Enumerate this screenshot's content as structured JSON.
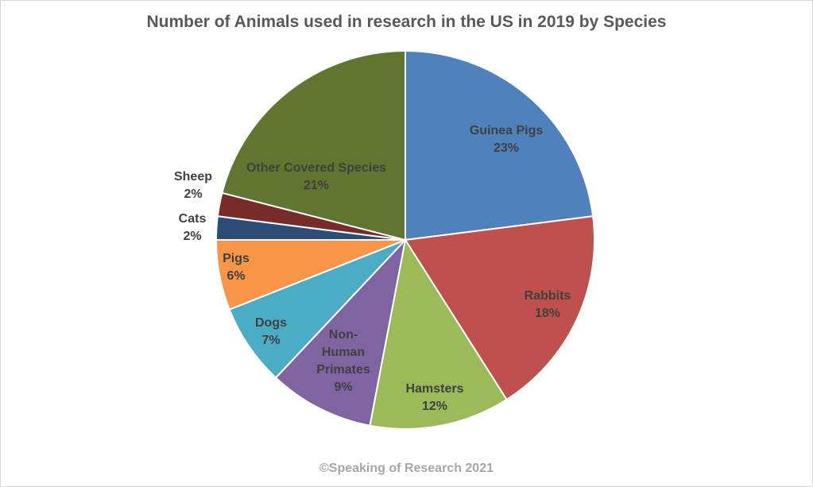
{
  "chart_data": {
    "type": "pie",
    "title": "Number of Animals used in research in the US in 2019 by Species",
    "slices": [
      {
        "label": "Guinea Pigs",
        "value": 23,
        "display": "23%",
        "color": "#4f81bd"
      },
      {
        "label": "Rabbits",
        "value": 18,
        "display": "18%",
        "color": "#c0504d"
      },
      {
        "label": "Hamsters",
        "value": 12,
        "display": "12%",
        "color": "#9bbb59"
      },
      {
        "label": "Non-Human Primates",
        "value": 9,
        "display": "9%",
        "color": "#8064a2"
      },
      {
        "label": "Dogs",
        "value": 7,
        "display": "7%",
        "color": "#4bacc6"
      },
      {
        "label": "Pigs",
        "value": 6,
        "display": "6%",
        "color": "#f79646"
      },
      {
        "label": "Cats",
        "value": 2,
        "display": "2%",
        "color": "#2c4d75"
      },
      {
        "label": "Sheep",
        "value": 2,
        "display": "2%",
        "color": "#772c2a"
      },
      {
        "label": "Other Covered Species",
        "value": 21,
        "display": "21%",
        "color": "#5f7530"
      }
    ],
    "start_angle": "12 o'clock",
    "direction": "clockwise",
    "legend": "none"
  },
  "footer": "©Speaking of Research 2021"
}
